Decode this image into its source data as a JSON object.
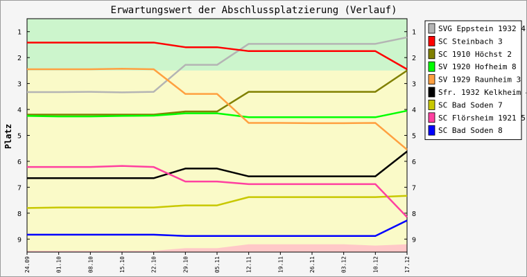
{
  "chart_data": {
    "type": "line",
    "title": "Erwartungswert der Abschlussplatzierung (Verlauf)",
    "ylabel": "Platz",
    "xlabel": "",
    "ylim": [
      0.5,
      9.5
    ],
    "y_reversed": true,
    "y_ticks": [
      "1",
      "2",
      "3",
      "4",
      "5",
      "6",
      "7",
      "8",
      "9"
    ],
    "categories": [
      "24.09",
      "01.10",
      "08.10",
      "15.10",
      "22.10",
      "29.10",
      "05.11",
      "12.11",
      "19.11",
      "26.11",
      "03.12",
      "10.12",
      "17.12"
    ],
    "bands": [
      {
        "from": 0.5,
        "to": 2.5,
        "color": "#ccf5cc"
      },
      {
        "from": 2.5,
        "to": 9.5,
        "color": "#fafac8"
      }
    ],
    "bottom_band": {
      "color": "#ffc8c8",
      "top": [
        9.45,
        9.45,
        9.45,
        9.45,
        9.45,
        9.35,
        9.35,
        9.2,
        9.2,
        9.2,
        9.2,
        9.25,
        9.2
      ]
    },
    "legend_position": "right",
    "grid": false,
    "series": [
      {
        "name": "SVG Eppstein 1932 4",
        "color": "#b4b4b4",
        "values": [
          3.33,
          3.33,
          3.32,
          3.34,
          3.32,
          2.28,
          2.28,
          1.47,
          1.47,
          1.47,
          1.47,
          1.47,
          1.22
        ]
      },
      {
        "name": "SC Steinbach 3",
        "color": "#ff0000",
        "values": [
          1.42,
          1.42,
          1.42,
          1.42,
          1.42,
          1.6,
          1.6,
          1.75,
          1.75,
          1.75,
          1.75,
          1.75,
          2.45
        ]
      },
      {
        "name": "SC 1910 Höchst 2",
        "color": "#808000",
        "values": [
          4.2,
          4.2,
          4.2,
          4.2,
          4.2,
          4.08,
          4.08,
          3.32,
          3.32,
          3.32,
          3.32,
          3.32,
          2.5
        ]
      },
      {
        "name": "SV 1920 Hofheim 8",
        "color": "#00ff00",
        "values": [
          4.25,
          4.27,
          4.27,
          4.25,
          4.24,
          4.15,
          4.15,
          4.3,
          4.3,
          4.3,
          4.3,
          4.3,
          4.05
        ]
      },
      {
        "name": "SV 1929 Raunheim 3",
        "color": "#ffa040",
        "values": [
          2.45,
          2.45,
          2.45,
          2.43,
          2.45,
          3.4,
          3.4,
          4.52,
          4.52,
          4.53,
          4.53,
          4.52,
          5.55
        ]
      },
      {
        "name": "Sfr. 1932 Kelkheim 4",
        "color": "#000000",
        "values": [
          6.65,
          6.65,
          6.65,
          6.65,
          6.65,
          6.28,
          6.28,
          6.58,
          6.58,
          6.58,
          6.58,
          6.58,
          5.62
        ]
      },
      {
        "name": "SC Bad Soden 7",
        "color": "#c8c800",
        "values": [
          7.8,
          7.78,
          7.78,
          7.78,
          7.78,
          7.7,
          7.7,
          7.38,
          7.38,
          7.38,
          7.38,
          7.38,
          7.33
        ]
      },
      {
        "name": "SC Flörsheim 1921 5",
        "color": "#ff40a0",
        "values": [
          6.22,
          6.22,
          6.22,
          6.18,
          6.22,
          6.78,
          6.78,
          6.88,
          6.88,
          6.88,
          6.88,
          6.88,
          8.15
        ]
      },
      {
        "name": "SC Bad Soden 8",
        "color": "#0000ff",
        "values": [
          8.83,
          8.83,
          8.83,
          8.83,
          8.83,
          8.88,
          8.88,
          8.88,
          8.88,
          8.88,
          8.88,
          8.88,
          8.28
        ]
      }
    ]
  }
}
